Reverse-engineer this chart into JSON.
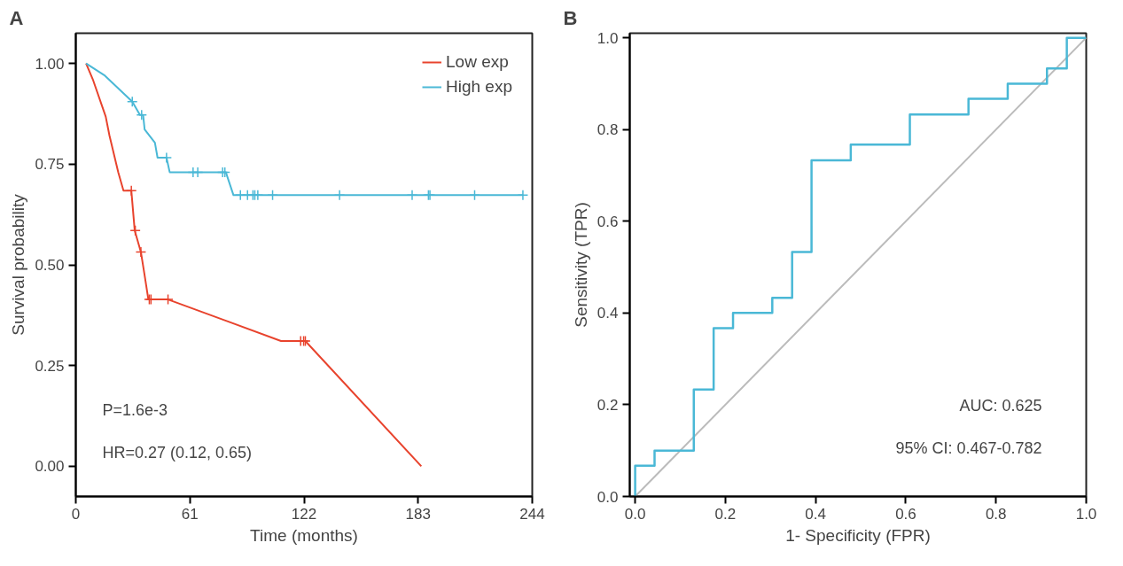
{
  "chart_data": [
    {
      "type": "line",
      "title": "A",
      "xlabel": "Time (months)",
      "ylabel": "Survival probability",
      "xlim": [
        0,
        244
      ],
      "xticks": [
        0,
        61,
        122,
        183,
        244
      ],
      "ylim": [
        -0.075,
        1.075
      ],
      "yticks": [
        {
          "value": 0,
          "label": "0.00"
        },
        {
          "value": 0.25,
          "label": "0.25"
        },
        {
          "value": 0.5,
          "label": "0.50"
        },
        {
          "value": 0.75,
          "label": "0.75"
        },
        {
          "value": 1,
          "label": "1.00"
        }
      ],
      "grid": false,
      "legend": "top right",
      "annotations": [
        "P=1.6e-3",
        "HR=0.27 (0.12, 0.65)"
      ],
      "series": [
        {
          "name": "Low exp",
          "color": "#e8432d",
          "x": [
            5.5,
            9.3,
            16,
            18,
            22.7,
            25.5,
            29.7,
            31.5,
            34.8,
            36.8,
            38.8,
            49.3,
            109.7,
            122.7,
            184.7
          ],
          "values": [
            1.0,
            0.958,
            0.868,
            0.821,
            0.73,
            0.684,
            0.684,
            0.585,
            0.532,
            0.474,
            0.414,
            0.414,
            0.311,
            0.311,
            0.0
          ]
        },
        {
          "name": "High exp",
          "color": "#4ab8d6",
          "x": [
            5.5,
            15.2,
            30.2,
            34.3,
            36,
            36.8,
            42.3,
            43.7,
            48.5,
            50.2,
            80.2,
            84.3,
            239
          ],
          "values": [
            1.0,
            0.971,
            0.905,
            0.872,
            0.872,
            0.836,
            0.803,
            0.766,
            0.766,
            0.73,
            0.73,
            0.673,
            0.673
          ]
        },
        {
          "type": "scatter",
          "marker": "cross",
          "color": "#e8432d",
          "x": [
            29.7,
            31.8,
            34.8,
            39.3,
            40.2,
            49.3,
            120.2,
            121.8,
            122.7
          ],
          "values": [
            0.684,
            0.585,
            0.532,
            0.414,
            0.414,
            0.414,
            0.311,
            0.311,
            0.311
          ]
        },
        {
          "type": "scatter",
          "marker": "cross",
          "color": "#4ab8d6",
          "x": [
            30.2,
            35.2,
            48.5,
            62.7,
            65.2,
            78.5,
            79.7,
            88,
            91.8,
            94.7,
            95.7,
            97.3,
            105.2,
            141,
            179.8,
            188.5,
            189.3,
            213.2,
            239
          ],
          "values": [
            0.905,
            0.872,
            0.766,
            0.73,
            0.73,
            0.73,
            0.73,
            0.673,
            0.673,
            0.673,
            0.673,
            0.673,
            0.673,
            0.673,
            0.673,
            0.673,
            0.673,
            0.673,
            0.673
          ]
        }
      ]
    },
    {
      "type": "step",
      "title": "B",
      "xlabel": "1- Specificity (FPR)",
      "ylabel": "Sensitivity (TPR)",
      "xlim": [
        -0.012,
        1.0
      ],
      "xticks": [
        {
          "value": 0,
          "label": "0.0"
        },
        {
          "value": 0.2,
          "label": "0.2"
        },
        {
          "value": 0.4,
          "label": "0.4"
        },
        {
          "value": 0.6,
          "label": "0.6"
        },
        {
          "value": 0.8,
          "label": "0.8"
        },
        {
          "value": 1,
          "label": "1.0"
        }
      ],
      "ylim": [
        0,
        1.01
      ],
      "yticks": [
        {
          "value": 0,
          "label": "0.0"
        },
        {
          "value": 0.2,
          "label": "0.2"
        },
        {
          "value": 0.4,
          "label": "0.4"
        },
        {
          "value": 0.6,
          "label": "0.6"
        },
        {
          "value": 0.8,
          "label": "0.8"
        },
        {
          "value": 1,
          "label": "1.0"
        }
      ],
      "grid": false,
      "annotations": [
        "AUC: 0.625",
        "95% CI: 0.467-0.782"
      ],
      "series": [
        {
          "type": "line",
          "color": "#bbbbbb",
          "x": [
            0,
            1
          ],
          "values": [
            0,
            1
          ]
        },
        {
          "color": "#4ab8d6",
          "x": [
            0,
            0,
            0.043,
            0.13,
            0.174,
            0.217,
            0.304,
            0.348,
            0.391,
            0.478,
            0.609,
            0.739,
            0.826,
            0.913,
            0.957,
            1
          ],
          "values": [
            0,
            0.067,
            0.1,
            0.233,
            0.367,
            0.4,
            0.433,
            0.533,
            0.733,
            0.767,
            0.833,
            0.867,
            0.9,
            0.933,
            1,
            1
          ]
        }
      ]
    }
  ]
}
